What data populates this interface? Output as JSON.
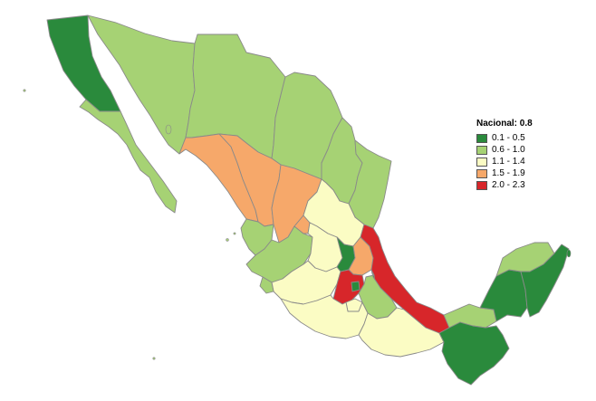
{
  "legend": {
    "title": "Nacional: 0.8",
    "items": [
      {
        "label": "0.1 - 0.5",
        "color": "#2a8a3c"
      },
      {
        "label": "0.6 - 1.0",
        "color": "#a6d274"
      },
      {
        "label": "1.1 - 1.4",
        "color": "#fbfcc4"
      },
      {
        "label": "1.5 - 1.9",
        "color": "#f6a86a"
      },
      {
        "label": "2.0 - 2.3",
        "color": "#d7262a"
      }
    ]
  },
  "regions": [
    {
      "name": "Baja California",
      "class": "0.1 - 0.5"
    },
    {
      "name": "Baja California Sur",
      "class": "0.6 - 1.0"
    },
    {
      "name": "Sonora",
      "class": "0.6 - 1.0"
    },
    {
      "name": "Chihuahua",
      "class": "0.6 - 1.0"
    },
    {
      "name": "Coahuila",
      "class": "0.6 - 1.0"
    },
    {
      "name": "Nuevo León",
      "class": "0.6 - 1.0"
    },
    {
      "name": "Tamaulipas",
      "class": "0.6 - 1.0"
    },
    {
      "name": "Sinaloa",
      "class": "1.5 - 1.9"
    },
    {
      "name": "Durango",
      "class": "1.5 - 1.9"
    },
    {
      "name": "Zacatecas",
      "class": "1.5 - 1.9"
    },
    {
      "name": "Nayarit",
      "class": "0.6 - 1.0"
    },
    {
      "name": "Jalisco",
      "class": "0.6 - 1.0"
    },
    {
      "name": "Aguascalientes",
      "class": "1.5 - 1.9"
    },
    {
      "name": "San Luis Potosí",
      "class": "1.1 - 1.4"
    },
    {
      "name": "Guanajuato",
      "class": "1.1 - 1.4"
    },
    {
      "name": "Querétaro",
      "class": "0.1 - 0.5"
    },
    {
      "name": "Hidalgo",
      "class": "1.5 - 1.9"
    },
    {
      "name": "Veracruz",
      "class": "2.0 - 2.3"
    },
    {
      "name": "Michoacán",
      "class": "1.1 - 1.4"
    },
    {
      "name": "Colima",
      "class": "0.6 - 1.0"
    },
    {
      "name": "Estado de México",
      "class": "2.0 - 2.3"
    },
    {
      "name": "Ciudad de México",
      "class": "0.1 - 0.5"
    },
    {
      "name": "Tlaxcala",
      "class": "0.1 - 0.5"
    },
    {
      "name": "Morelos",
      "class": "1.1 - 1.4"
    },
    {
      "name": "Puebla",
      "class": "0.6 - 1.0"
    },
    {
      "name": "Guerrero",
      "class": "1.1 - 1.4"
    },
    {
      "name": "Oaxaca",
      "class": "1.1 - 1.4"
    },
    {
      "name": "Tabasco",
      "class": "0.6 - 1.0"
    },
    {
      "name": "Chiapas",
      "class": "0.1 - 0.5"
    },
    {
      "name": "Campeche",
      "class": "0.1 - 0.5"
    },
    {
      "name": "Yucatán",
      "class": "0.6 - 1.0"
    },
    {
      "name": "Quintana Roo",
      "class": "0.1 - 0.5"
    }
  ]
}
